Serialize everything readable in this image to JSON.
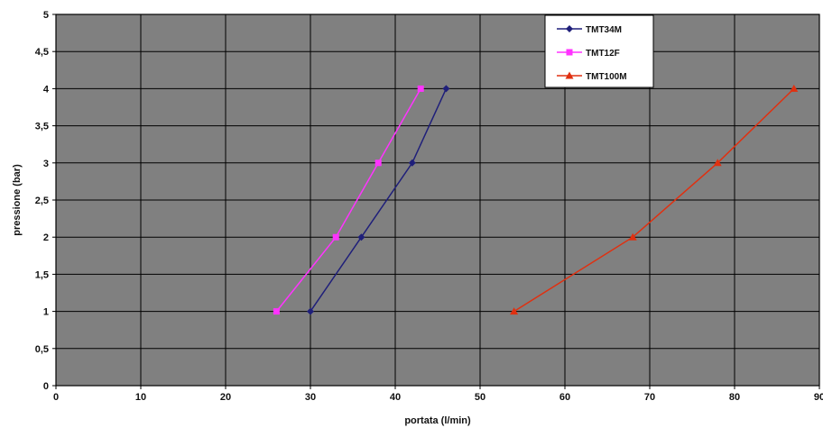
{
  "chart_data": {
    "type": "line",
    "title": "",
    "xlabel": "portata (l/min)",
    "ylabel": "pressione (bar)",
    "xlim": [
      0,
      90
    ],
    "ylim": [
      0,
      5
    ],
    "x_ticks": [
      "0",
      "10",
      "20",
      "30",
      "40",
      "50",
      "60",
      "70",
      "80",
      "90"
    ],
    "y_ticks": [
      "0",
      "0,5",
      "1",
      "1,5",
      "2",
      "2,5",
      "3",
      "3,5",
      "4",
      "4,5",
      "5"
    ],
    "grid": true,
    "legend_position": "top-right",
    "plot_background": "#808080",
    "series": [
      {
        "name": "TMT34M",
        "color": "#1f1f7a",
        "marker": "diamond",
        "points": [
          [
            30,
            1
          ],
          [
            36,
            2
          ],
          [
            42,
            3
          ],
          [
            46,
            4
          ]
        ]
      },
      {
        "name": "TMT12F",
        "color": "#ff33ff",
        "marker": "square",
        "points": [
          [
            26,
            1
          ],
          [
            33,
            2
          ],
          [
            38,
            3
          ],
          [
            43,
            4
          ]
        ]
      },
      {
        "name": "TMT100M",
        "color": "#e03010",
        "marker": "triangle",
        "points": [
          [
            54,
            1
          ],
          [
            68,
            2
          ],
          [
            78,
            3
          ],
          [
            87,
            4
          ]
        ]
      }
    ]
  }
}
